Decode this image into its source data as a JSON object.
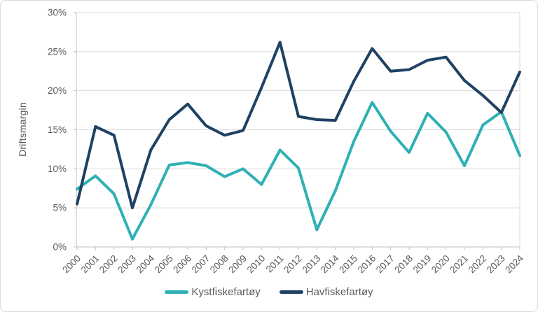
{
  "chart": {
    "y_axis_title": "Driftsmargin",
    "legend": [
      {
        "label": "Kystfiskefartøy"
      },
      {
        "label": "Havfiskefartøy"
      }
    ]
  },
  "chart_data": {
    "type": "line",
    "title": "",
    "xlabel": "",
    "ylabel": "Driftsmargin",
    "x": [
      "2000",
      "2001",
      "2002",
      "2003",
      "2004",
      "2005",
      "2006",
      "2007",
      "2008",
      "2009",
      "2010",
      "2011",
      "2012",
      "2013",
      "2014",
      "2015",
      "2016",
      "2017",
      "2018",
      "2019",
      "2020",
      "2021",
      "2022",
      "2023",
      "2024"
    ],
    "series": [
      {
        "name": "Kystfiskefartøy",
        "color": "#2FB0B5",
        "values": [
          7.4,
          9.1,
          6.8,
          1.0,
          5.4,
          10.5,
          10.8,
          10.4,
          9.0,
          10.0,
          8.0,
          12.4,
          10.1,
          2.2,
          7.2,
          13.5,
          18.5,
          14.8,
          12.1,
          17.1,
          14.7,
          10.4,
          15.6,
          17.3,
          11.7
        ]
      },
      {
        "name": "Havfiskefartøy",
        "color": "#1F4264",
        "values": [
          5.5,
          15.4,
          14.3,
          5.0,
          12.4,
          16.3,
          18.3,
          15.5,
          14.3,
          14.9,
          20.4,
          26.2,
          16.7,
          16.3,
          16.2,
          21.2,
          25.4,
          22.5,
          22.7,
          23.9,
          24.3,
          21.3,
          19.4,
          17.2,
          22.4
        ]
      }
    ],
    "ylim": [
      0,
      30
    ],
    "ytick_step": 5,
    "ytick_suffix": "%",
    "grid": true,
    "legend_position": "bottom",
    "colors": {
      "gridline": "#D9D9D9",
      "axis": "#BFBFBF",
      "tick_text": "#595959",
      "background": "#FFFFFF",
      "frame_border": "#D9D9D9"
    }
  }
}
